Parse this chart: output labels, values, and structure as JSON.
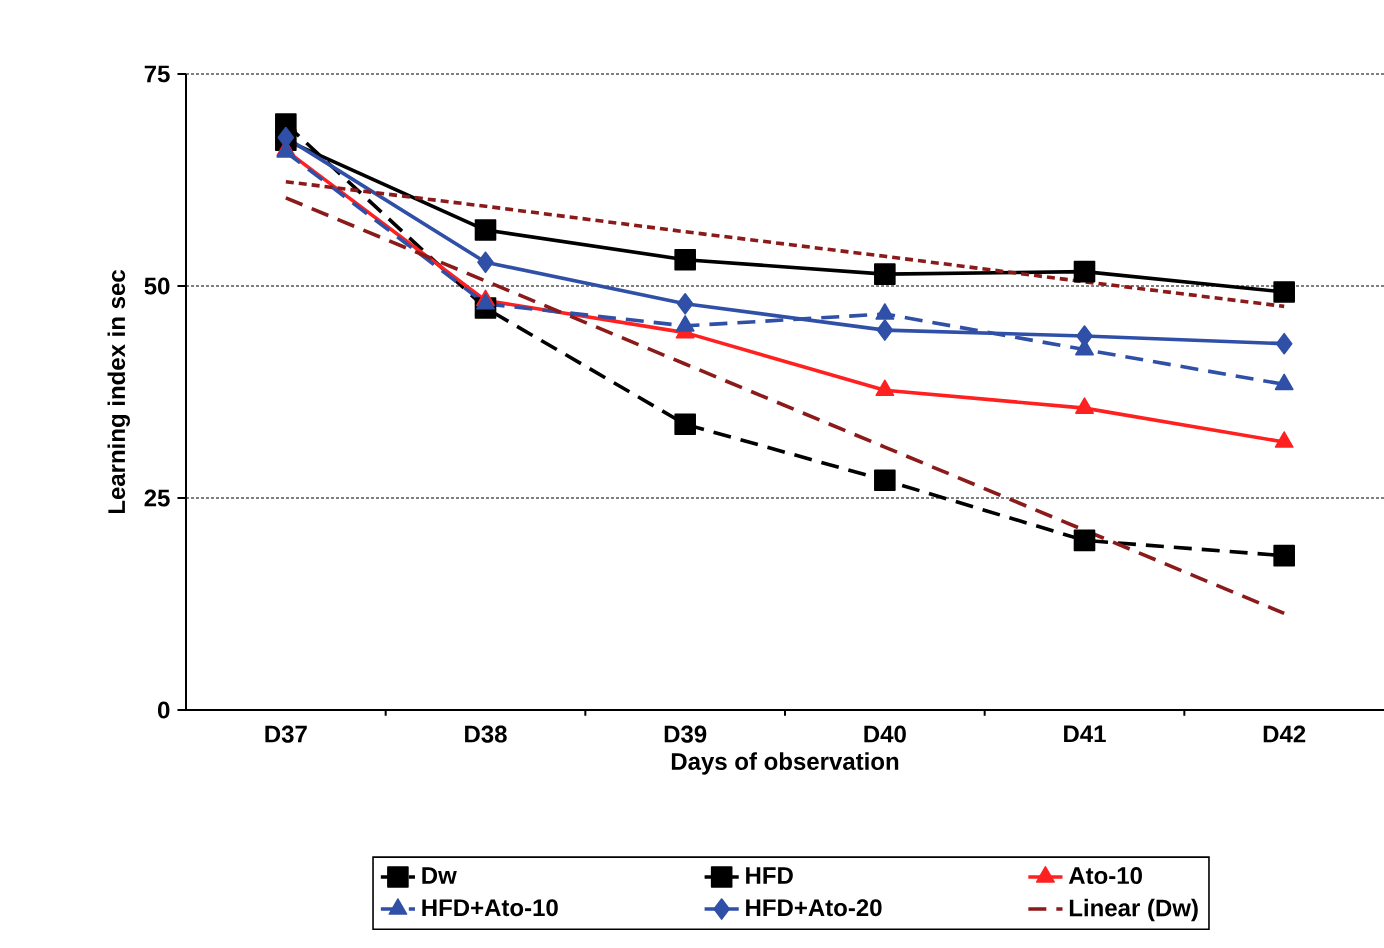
{
  "chart_data": {
    "type": "line",
    "xlabel": "Days of observation",
    "ylabel": "Learning index in sec",
    "categories": [
      "D37",
      "D38",
      "D39",
      "D40",
      "D41",
      "D42"
    ],
    "ylim": [
      0,
      75
    ],
    "yticks": [
      0,
      25,
      50,
      75
    ],
    "grid": "y",
    "legend": "bottom",
    "series": [
      {
        "name": "Dw",
        "color": "#000000",
        "marker": "square",
        "line_style": "dashed",
        "values": [
          69.1,
          47.4,
          33.7,
          27.1,
          20.0,
          18.2
        ]
      },
      {
        "name": "HFD",
        "color": "#000000",
        "marker": "square",
        "line_style": "solid",
        "values": [
          67.2,
          56.6,
          53.1,
          51.4,
          51.7,
          49.3
        ]
      },
      {
        "name": "Ato-10",
        "color": "#ff2020",
        "marker": "triangle",
        "line_style": "solid",
        "values": [
          66.0,
          48.3,
          44.5,
          37.7,
          35.6,
          31.6
        ]
      },
      {
        "name": "HFD+Ato-10",
        "color": "#3050a8",
        "marker": "triangle",
        "line_style": "dashed",
        "values": [
          65.8,
          47.9,
          45.3,
          46.7,
          42.5,
          38.4
        ]
      },
      {
        "name": "HFD+Ato-20",
        "color": "#3050a8",
        "marker": "diamond",
        "line_style": "solid",
        "values": [
          67.5,
          52.8,
          47.9,
          44.8,
          44.1,
          43.2
        ]
      },
      {
        "name": "Linear (Dw)",
        "color": "#8b1a1a",
        "marker": "none",
        "line_style": "dashed",
        "values": [
          60.4,
          50.6,
          40.8,
          31.0,
          21.2,
          11.4
        ]
      },
      {
        "color": "#8b1a1a",
        "marker": "none",
        "line_style": "dotted",
        "values": [
          62.3,
          59.4,
          56.4,
          53.5,
          50.5,
          47.6
        ]
      }
    ]
  }
}
